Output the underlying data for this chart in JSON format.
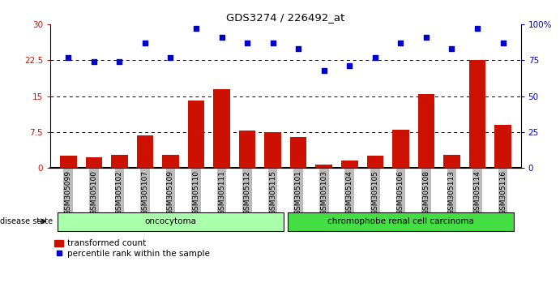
{
  "title": "GDS3274 / 226492_at",
  "samples": [
    "GSM305099",
    "GSM305100",
    "GSM305102",
    "GSM305107",
    "GSM305109",
    "GSM305110",
    "GSM305111",
    "GSM305112",
    "GSM305115",
    "GSM305101",
    "GSM305103",
    "GSM305104",
    "GSM305105",
    "GSM305106",
    "GSM305108",
    "GSM305113",
    "GSM305114",
    "GSM305116"
  ],
  "bar_values": [
    2.5,
    2.2,
    2.8,
    6.8,
    2.8,
    14.0,
    16.5,
    7.8,
    7.5,
    6.5,
    0.7,
    1.5,
    2.5,
    8.0,
    15.5,
    2.8,
    22.5,
    9.0
  ],
  "scatter_values": [
    77,
    74,
    74,
    87,
    77,
    97,
    91,
    87,
    87,
    83,
    68,
    71,
    77,
    87,
    91,
    83,
    97,
    87
  ],
  "groups": [
    {
      "label": "oncocytoma",
      "start": 0,
      "end": 9,
      "color": "#aaffaa"
    },
    {
      "label": "chromophobe renal cell carcinoma",
      "start": 9,
      "end": 18,
      "color": "#44dd44"
    }
  ],
  "ylim_left": [
    0,
    30
  ],
  "ylim_right": [
    0,
    100
  ],
  "yticks_left": [
    0,
    7.5,
    15,
    22.5,
    30
  ],
  "yticks_right": [
    0,
    25,
    50,
    75,
    100
  ],
  "ytick_labels_left": [
    "0",
    "7.5",
    "15",
    "22.5",
    "30"
  ],
  "ytick_labels_right": [
    "0",
    "25",
    "50",
    "75",
    "100%"
  ],
  "bar_color": "#cc1100",
  "scatter_color": "#0000cc",
  "bg_color": "#ffffff",
  "tick_bg": "#bbbbbb",
  "disease_state_label": "disease state",
  "legend_bar_label": "transformed count",
  "legend_scatter_label": "percentile rank within the sample"
}
